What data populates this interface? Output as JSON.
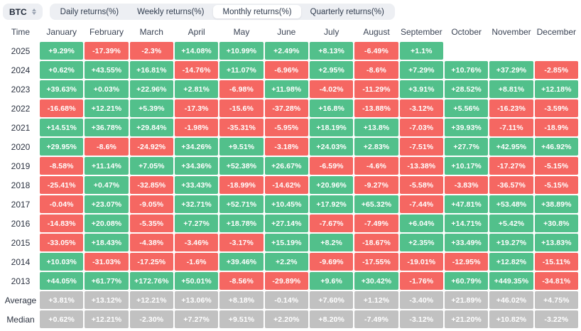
{
  "controls": {
    "symbol": "BTC",
    "symbol_selector_icon": "sort-updown-icon",
    "tabs": [
      {
        "label": "Daily returns(%)",
        "active": false
      },
      {
        "label": "Weekly returns(%)",
        "active": false
      },
      {
        "label": "Monthly returns(%)",
        "active": true
      },
      {
        "label": "Quarterly returns(%)",
        "active": false
      }
    ]
  },
  "colors": {
    "positive": "#52c08b",
    "negative": "#f56762",
    "neutral": "#c1c1c1",
    "pill_background": "#edeff3",
    "text_dark": "#2f3b4d"
  },
  "table": {
    "time_header": "Time",
    "months": [
      "January",
      "February",
      "March",
      "April",
      "May",
      "June",
      "July",
      "August",
      "September",
      "October",
      "November",
      "December"
    ],
    "rows": [
      {
        "label": "2025",
        "type": "year",
        "values": [
          "+9.29%",
          "-17.39%",
          "-2.3%",
          "+14.08%",
          "+10.99%",
          "+2.49%",
          "+8.13%",
          "-6.49%",
          "+1.1%",
          "",
          "",
          ""
        ]
      },
      {
        "label": "2024",
        "type": "year",
        "values": [
          "+0.62%",
          "+43.55%",
          "+16.81%",
          "-14.76%",
          "+11.07%",
          "-6.96%",
          "+2.95%",
          "-8.6%",
          "+7.29%",
          "+10.76%",
          "+37.29%",
          "-2.85%"
        ]
      },
      {
        "label": "2023",
        "type": "year",
        "values": [
          "+39.63%",
          "+0.03%",
          "+22.96%",
          "+2.81%",
          "-6.98%",
          "+11.98%",
          "-4.02%",
          "-11.29%",
          "+3.91%",
          "+28.52%",
          "+8.81%",
          "+12.18%"
        ]
      },
      {
        "label": "2022",
        "type": "year",
        "values": [
          "-16.68%",
          "+12.21%",
          "+5.39%",
          "-17.3%",
          "-15.6%",
          "-37.28%",
          "+16.8%",
          "-13.88%",
          "-3.12%",
          "+5.56%",
          "-16.23%",
          "-3.59%"
        ]
      },
      {
        "label": "2021",
        "type": "year",
        "values": [
          "+14.51%",
          "+36.78%",
          "+29.84%",
          "-1.98%",
          "-35.31%",
          "-5.95%",
          "+18.19%",
          "+13.8%",
          "-7.03%",
          "+39.93%",
          "-7.11%",
          "-18.9%"
        ]
      },
      {
        "label": "2020",
        "type": "year",
        "values": [
          "+29.95%",
          "-8.6%",
          "-24.92%",
          "+34.26%",
          "+9.51%",
          "-3.18%",
          "+24.03%",
          "+2.83%",
          "-7.51%",
          "+27.7%",
          "+42.95%",
          "+46.92%"
        ]
      },
      {
        "label": "2019",
        "type": "year",
        "values": [
          "-8.58%",
          "+11.14%",
          "+7.05%",
          "+34.36%",
          "+52.38%",
          "+26.67%",
          "-6.59%",
          "-4.6%",
          "-13.38%",
          "+10.17%",
          "-17.27%",
          "-5.15%"
        ]
      },
      {
        "label": "2018",
        "type": "year",
        "values": [
          "-25.41%",
          "+0.47%",
          "-32.85%",
          "+33.43%",
          "-18.99%",
          "-14.62%",
          "+20.96%",
          "-9.27%",
          "-5.58%",
          "-3.83%",
          "-36.57%",
          "-5.15%"
        ]
      },
      {
        "label": "2017",
        "type": "year",
        "values": [
          "-0.04%",
          "+23.07%",
          "-9.05%",
          "+32.71%",
          "+52.71%",
          "+10.45%",
          "+17.92%",
          "+65.32%",
          "-7.44%",
          "+47.81%",
          "+53.48%",
          "+38.89%"
        ]
      },
      {
        "label": "2016",
        "type": "year",
        "values": [
          "-14.83%",
          "+20.08%",
          "-5.35%",
          "+7.27%",
          "+18.78%",
          "+27.14%",
          "-7.67%",
          "-7.49%",
          "+6.04%",
          "+14.71%",
          "+5.42%",
          "+30.8%"
        ]
      },
      {
        "label": "2015",
        "type": "year",
        "values": [
          "-33.05%",
          "+18.43%",
          "-4.38%",
          "-3.46%",
          "-3.17%",
          "+15.19%",
          "+8.2%",
          "-18.67%",
          "+2.35%",
          "+33.49%",
          "+19.27%",
          "+13.83%"
        ]
      },
      {
        "label": "2014",
        "type": "year",
        "values": [
          "+10.03%",
          "-31.03%",
          "-17.25%",
          "-1.6%",
          "+39.46%",
          "+2.2%",
          "-9.69%",
          "-17.55%",
          "-19.01%",
          "-12.95%",
          "+12.82%",
          "-15.11%"
        ]
      },
      {
        "label": "2013",
        "type": "year",
        "values": [
          "+44.05%",
          "+61.77%",
          "+172.76%",
          "+50.01%",
          "-8.56%",
          "-29.89%",
          "+9.6%",
          "+30.42%",
          "-1.76%",
          "+60.79%",
          "+449.35%",
          "-34.81%"
        ]
      },
      {
        "label": "Average",
        "type": "summary",
        "values": [
          "+3.81%",
          "+13.12%",
          "+12.21%",
          "+13.06%",
          "+8.18%",
          "-0.14%",
          "+7.60%",
          "+1.12%",
          "-3.40%",
          "+21.89%",
          "+46.02%",
          "+4.75%"
        ]
      },
      {
        "label": "Median",
        "type": "summary",
        "values": [
          "+0.62%",
          "+12.21%",
          "-2.30%",
          "+7.27%",
          "+9.51%",
          "+2.20%",
          "+8.20%",
          "-7.49%",
          "-3.12%",
          "+21.20%",
          "+10.82%",
          "-3.22%"
        ]
      }
    ]
  },
  "chart_data": {
    "type": "heatmap",
    "title": "BTC Monthly returns(%)",
    "x": [
      "January",
      "February",
      "March",
      "April",
      "May",
      "June",
      "July",
      "August",
      "September",
      "October",
      "November",
      "December"
    ],
    "series": [
      {
        "name": "2025",
        "values": [
          9.29,
          -17.39,
          -2.3,
          14.08,
          10.99,
          2.49,
          8.13,
          -6.49,
          1.1,
          null,
          null,
          null
        ]
      },
      {
        "name": "2024",
        "values": [
          0.62,
          43.55,
          16.81,
          -14.76,
          11.07,
          -6.96,
          2.95,
          -8.6,
          7.29,
          10.76,
          37.29,
          -2.85
        ]
      },
      {
        "name": "2023",
        "values": [
          39.63,
          0.03,
          22.96,
          2.81,
          -6.98,
          11.98,
          -4.02,
          -11.29,
          3.91,
          28.52,
          8.81,
          12.18
        ]
      },
      {
        "name": "2022",
        "values": [
          -16.68,
          12.21,
          5.39,
          -17.3,
          -15.6,
          -37.28,
          16.8,
          -13.88,
          -3.12,
          5.56,
          -16.23,
          -3.59
        ]
      },
      {
        "name": "2021",
        "values": [
          14.51,
          36.78,
          29.84,
          -1.98,
          -35.31,
          -5.95,
          18.19,
          13.8,
          -7.03,
          39.93,
          -7.11,
          -18.9
        ]
      },
      {
        "name": "2020",
        "values": [
          29.95,
          -8.6,
          -24.92,
          34.26,
          9.51,
          -3.18,
          24.03,
          2.83,
          -7.51,
          27.7,
          42.95,
          46.92
        ]
      },
      {
        "name": "2019",
        "values": [
          -8.58,
          11.14,
          7.05,
          34.36,
          52.38,
          26.67,
          -6.59,
          -4.6,
          -13.38,
          10.17,
          -17.27,
          -5.15
        ]
      },
      {
        "name": "2018",
        "values": [
          -25.41,
          0.47,
          -32.85,
          33.43,
          -18.99,
          -14.62,
          20.96,
          -9.27,
          -5.58,
          -3.83,
          -36.57,
          -5.15
        ]
      },
      {
        "name": "2017",
        "values": [
          -0.04,
          23.07,
          -9.05,
          32.71,
          52.71,
          10.45,
          17.92,
          65.32,
          -7.44,
          47.81,
          53.48,
          38.89
        ]
      },
      {
        "name": "2016",
        "values": [
          -14.83,
          20.08,
          -5.35,
          7.27,
          18.78,
          27.14,
          -7.67,
          -7.49,
          6.04,
          14.71,
          5.42,
          30.8
        ]
      },
      {
        "name": "2015",
        "values": [
          -33.05,
          18.43,
          -4.38,
          -3.46,
          -3.17,
          15.19,
          8.2,
          -18.67,
          2.35,
          33.49,
          19.27,
          13.83
        ]
      },
      {
        "name": "2014",
        "values": [
          10.03,
          -31.03,
          -17.25,
          -1.6,
          39.46,
          2.2,
          -9.69,
          -17.55,
          -19.01,
          -12.95,
          12.82,
          -15.11
        ]
      },
      {
        "name": "2013",
        "values": [
          44.05,
          61.77,
          172.76,
          50.01,
          -8.56,
          -29.89,
          9.6,
          30.42,
          -1.76,
          60.79,
          449.35,
          -34.81
        ]
      },
      {
        "name": "Average",
        "values": [
          3.81,
          13.12,
          12.21,
          13.06,
          8.18,
          -0.14,
          7.6,
          1.12,
          -3.4,
          21.89,
          46.02,
          4.75
        ]
      },
      {
        "name": "Median",
        "values": [
          0.62,
          12.21,
          -2.3,
          7.27,
          9.51,
          2.2,
          8.2,
          -7.49,
          -3.12,
          21.2,
          10.82,
          -3.22
        ]
      }
    ],
    "color_coding": {
      "positive": "green",
      "negative": "red",
      "summary_rows": "gray"
    },
    "legend_position": "none",
    "grid": false
  }
}
